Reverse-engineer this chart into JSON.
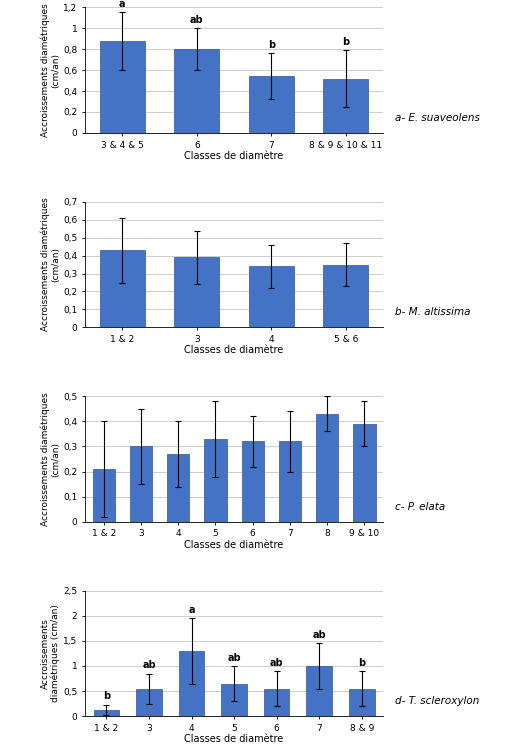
{
  "subplots": [
    {
      "species": "a- E. suaveolens",
      "species_style": "italic",
      "categories": [
        "3 & 4 & 5",
        "6",
        "7",
        "8 & 9 & 10 & 11"
      ],
      "values": [
        0.88,
        0.8,
        0.54,
        0.52
      ],
      "errors": [
        0.28,
        0.2,
        0.22,
        0.27
      ],
      "letters": [
        "a",
        "ab",
        "b",
        "b"
      ],
      "ylim": [
        0,
        1.2
      ],
      "yticks": [
        0,
        0.2,
        0.4,
        0.6,
        0.8,
        1.0,
        1.2
      ],
      "ylabel": "Accroissements diamétriques\n(cm/an)"
    },
    {
      "species": "b- M. altissima",
      "species_style": "italic",
      "categories": [
        "1 & 2",
        "3",
        "4",
        "5 & 6"
      ],
      "values": [
        0.43,
        0.39,
        0.34,
        0.35
      ],
      "errors": [
        0.18,
        0.15,
        0.12,
        0.12
      ],
      "letters": [
        "",
        "",
        "",
        ""
      ],
      "ylim": [
        0,
        0.7
      ],
      "yticks": [
        0,
        0.1,
        0.2,
        0.3,
        0.4,
        0.5,
        0.6,
        0.7
      ],
      "ylabel": "Accroissements diamétriques\n(cm/an)"
    },
    {
      "species": "c- P. elata",
      "species_style": "italic",
      "categories": [
        "1 & 2",
        "3",
        "4",
        "5",
        "6",
        "7",
        "8",
        "9 & 10"
      ],
      "values": [
        0.21,
        0.3,
        0.27,
        0.33,
        0.32,
        0.32,
        0.43,
        0.39
      ],
      "errors": [
        0.19,
        0.15,
        0.13,
        0.15,
        0.1,
        0.12,
        0.07,
        0.09
      ],
      "letters": [
        "",
        "",
        "",
        "",
        "",
        "",
        "",
        ""
      ],
      "ylim": [
        0,
        0.5
      ],
      "yticks": [
        0,
        0.1,
        0.2,
        0.3,
        0.4,
        0.5
      ],
      "ylabel": "Accroissements diamétriques\n(cm/an)"
    },
    {
      "species": "d- T. scleroxylon",
      "species_style": "italic",
      "categories": [
        "1 & 2",
        "3",
        "4",
        "5",
        "6",
        "7",
        "8 & 9"
      ],
      "values": [
        0.13,
        0.55,
        1.3,
        0.65,
        0.55,
        1.0,
        0.55
      ],
      "errors": [
        0.1,
        0.3,
        0.65,
        0.35,
        0.35,
        0.45,
        0.35
      ],
      "letters": [
        "b",
        "ab",
        "a",
        "ab",
        "ab",
        "ab",
        "b"
      ],
      "ylim": [
        0,
        2.5
      ],
      "yticks": [
        0,
        0.5,
        1.0,
        1.5,
        2.0,
        2.5
      ],
      "ylabel": "Accroissements\ndiamétriques (cm/an)"
    }
  ],
  "bar_color": "#4472C4",
  "bar_edge_color": "#2F5597",
  "xlabel": "Classes de diamètre",
  "error_color": "black",
  "label_color": "black",
  "bg_color": "white",
  "grid_color": "#bbbbbb",
  "fig_width": 5.32,
  "fig_height": 7.46
}
